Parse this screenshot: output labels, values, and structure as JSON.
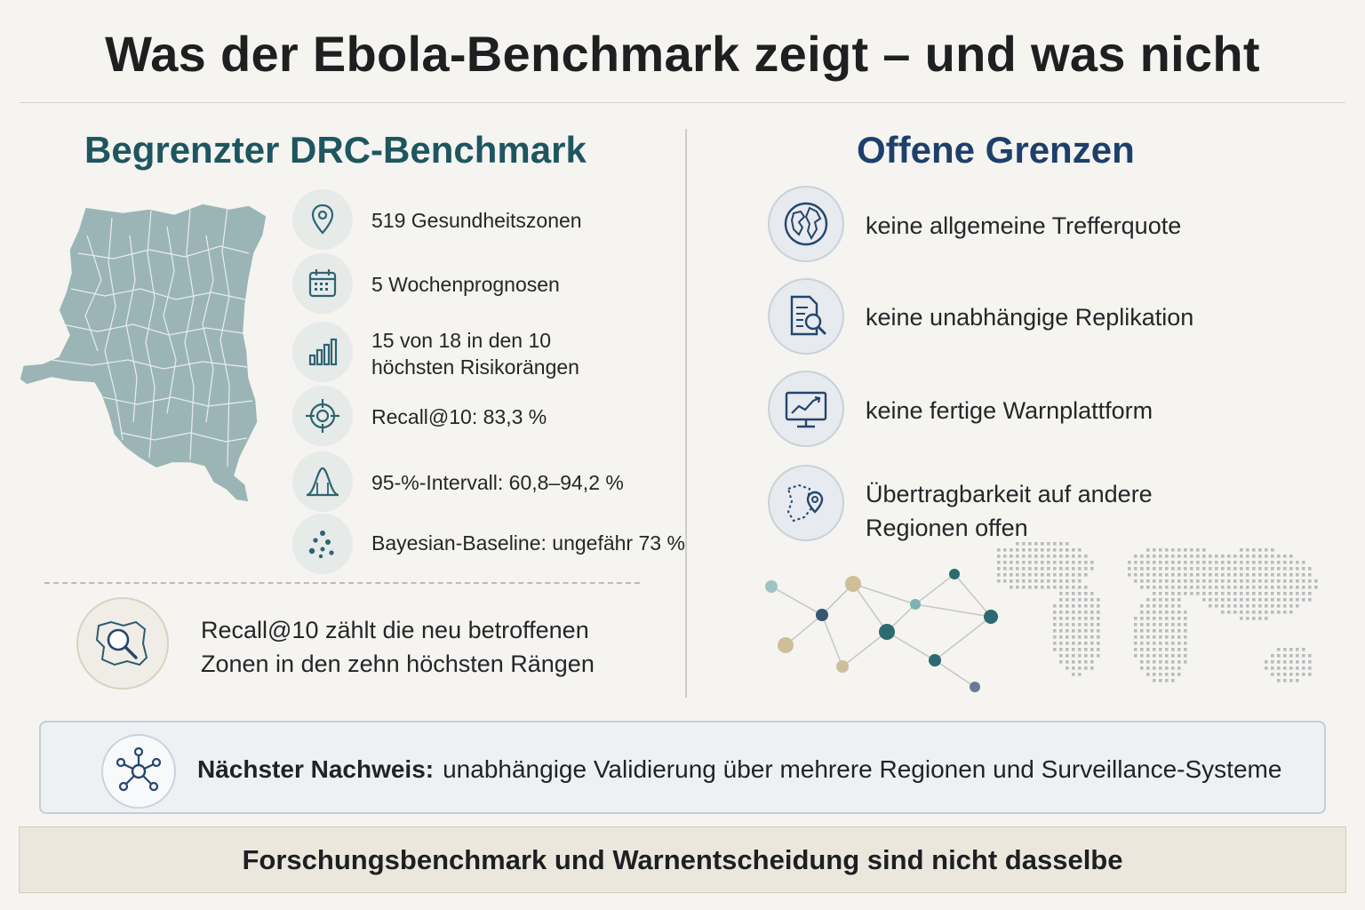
{
  "title": "Was der Ebola-Benchmark zeigt – und was nicht",
  "left": {
    "heading": "Begrenzter DRC-Benchmark",
    "metrics": [
      {
        "icon": "location-pin-icon",
        "text": "519 Gesundheitszonen"
      },
      {
        "icon": "calendar-icon",
        "text": "5 Wochenprognosen"
      },
      {
        "icon": "bar-chart-icon",
        "line1": "15 von 18 in den 10",
        "line2": "höchsten Risikorängen"
      },
      {
        "icon": "target-icon",
        "text": "Recall@10: 83,3 %"
      },
      {
        "icon": "bell-curve-icon",
        "text": "95-%-Intervall: 60,8–94,2 %"
      },
      {
        "icon": "dots-icon",
        "text": "Bayesian-Baseline: ungefähr 73 %"
      }
    ],
    "note": {
      "icon": "map-magnifier-icon",
      "line1": "Recall@10 zählt die neu betroffenen",
      "line2": "Zonen in den zehn höchsten Rängen"
    }
  },
  "right": {
    "heading": "Offene Grenzen",
    "limits": [
      {
        "icon": "globe-icon",
        "text": "keine allgemeine Trefferquote"
      },
      {
        "icon": "document-search-icon",
        "text": "keine unabhängige Replikation"
      },
      {
        "icon": "monitor-chart-icon",
        "text": "keine fertige Warnplattform"
      },
      {
        "icon": "region-pin-icon",
        "line1": "Übertragbarkeit auf andere",
        "line2": "Regionen offen"
      }
    ]
  },
  "next": {
    "icon": "network-icon",
    "label": "Nächster Nachweis:",
    "text": "unabhängige Validierung über mehrere Regionen und Surveillance-Systeme"
  },
  "footer": "Forschungsbenchmark und Warnentscheidung sind nicht dasselbe",
  "colors": {
    "left_heading": "#1e5660",
    "right_heading": "#1d3f6b",
    "icon_teal": "#2f6470",
    "icon_navy": "#24466d",
    "map_fill": "#9bb5b7"
  }
}
